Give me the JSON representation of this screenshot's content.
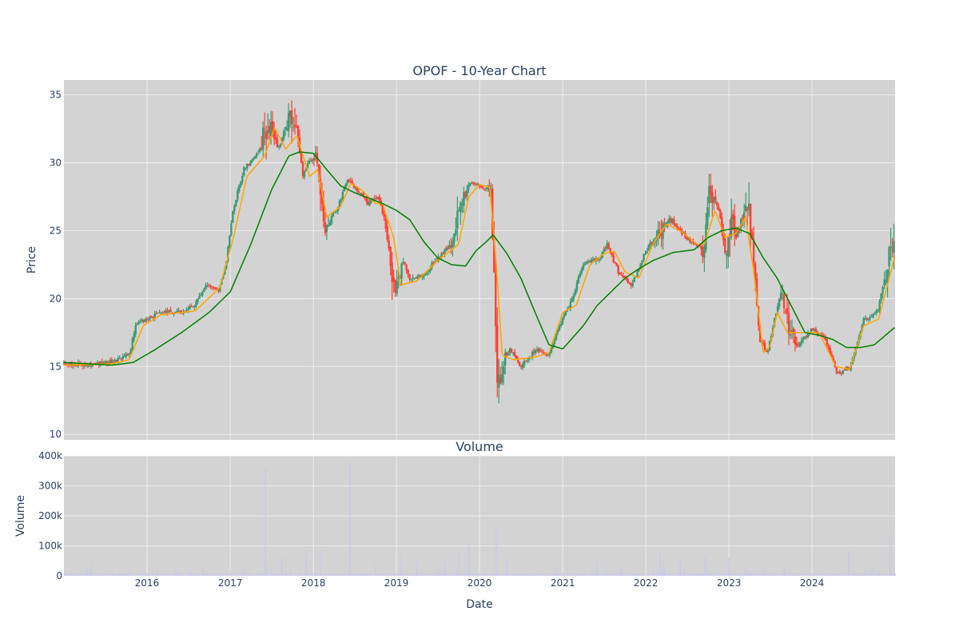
{
  "chart_data": [
    {
      "type": "candlestick",
      "title": "OPOF - 10-Year Chart",
      "ylabel": "Price",
      "ylim": [
        9.6,
        36.1
      ],
      "yticks": [
        10,
        15,
        20,
        25,
        30,
        35
      ],
      "xlim": [
        "2015-01-01",
        "2024-12-31"
      ],
      "grid": true,
      "colors": {
        "up": "#3d9970",
        "down": "#ff4136",
        "ma_short": "#ffa500",
        "ma_long": "#008000",
        "background": "#d3d3d3"
      },
      "price_keypoints": [
        [
          "2015-01-01",
          15.2
        ],
        [
          "2015-04-01",
          15.1
        ],
        [
          "2015-07-01",
          15.3
        ],
        [
          "2015-09-01",
          15.5
        ],
        [
          "2015-10-15",
          15.9
        ],
        [
          "2015-11-15",
          18.1
        ],
        [
          "2016-01-15",
          18.6
        ],
        [
          "2016-03-01",
          19.0
        ],
        [
          "2016-06-01",
          19.1
        ],
        [
          "2016-08-01",
          19.6
        ],
        [
          "2016-09-15",
          20.9
        ],
        [
          "2016-11-15",
          20.7
        ],
        [
          "2016-12-15",
          22.8
        ],
        [
          "2017-01-15",
          26.7
        ],
        [
          "2017-03-01",
          29.5
        ],
        [
          "2017-05-01",
          30.6
        ],
        [
          "2017-06-15",
          33.0
        ],
        [
          "2017-08-01",
          31.0
        ],
        [
          "2017-09-15",
          33.5
        ],
        [
          "2017-10-20",
          32.5
        ],
        [
          "2017-11-15",
          29.0
        ],
        [
          "2017-12-15",
          30.2
        ],
        [
          "2018-01-15",
          30.5
        ],
        [
          "2018-02-20",
          25.5
        ],
        [
          "2018-04-15",
          26.5
        ],
        [
          "2018-06-01",
          28.8
        ],
        [
          "2018-07-15",
          28.0
        ],
        [
          "2018-09-01",
          27.0
        ],
        [
          "2018-10-15",
          27.5
        ],
        [
          "2018-11-15",
          25.5
        ],
        [
          "2018-12-20",
          20.5
        ],
        [
          "2019-02-01",
          22.8
        ],
        [
          "2019-03-01",
          21.5
        ],
        [
          "2019-05-01",
          21.7
        ],
        [
          "2019-07-01",
          23.0
        ],
        [
          "2019-09-01",
          24.0
        ],
        [
          "2019-10-15",
          27.0
        ],
        [
          "2019-11-15",
          28.5
        ],
        [
          "2020-01-15",
          28.2
        ],
        [
          "2020-02-20",
          28.0
        ],
        [
          "2020-03-05",
          22.0
        ],
        [
          "2020-03-20",
          12.5
        ],
        [
          "2020-04-15",
          15.5
        ],
        [
          "2020-05-15",
          16.3
        ],
        [
          "2020-07-01",
          15.0
        ],
        [
          "2020-09-01",
          16.2
        ],
        [
          "2020-11-01",
          15.8
        ],
        [
          "2020-12-15",
          18.0
        ],
        [
          "2021-02-01",
          19.5
        ],
        [
          "2021-04-01",
          22.5
        ],
        [
          "2021-06-15",
          23.0
        ],
        [
          "2021-07-15",
          24.0
        ],
        [
          "2021-09-01",
          22.0
        ],
        [
          "2021-11-01",
          21.0
        ],
        [
          "2022-01-01",
          23.5
        ],
        [
          "2022-03-01",
          25.0
        ],
        [
          "2022-04-15",
          26.0
        ],
        [
          "2022-06-01",
          25.0
        ],
        [
          "2022-08-01",
          24.0
        ],
        [
          "2022-09-15",
          23.6
        ],
        [
          "2022-10-01",
          27.5
        ],
        [
          "2022-11-15",
          26.8
        ],
        [
          "2022-12-20",
          23.0
        ],
        [
          "2023-01-10",
          25.5
        ],
        [
          "2023-02-01",
          24.5
        ],
        [
          "2023-03-20",
          27.5
        ],
        [
          "2023-04-20",
          23.0
        ],
        [
          "2023-05-15",
          17.0
        ],
        [
          "2023-06-20",
          16.0
        ],
        [
          "2023-07-20",
          18.5
        ],
        [
          "2023-08-20",
          20.5
        ],
        [
          "2023-09-20",
          18.0
        ],
        [
          "2023-11-01",
          16.5
        ],
        [
          "2024-01-01",
          17.8
        ],
        [
          "2024-03-01",
          17.0
        ],
        [
          "2024-04-20",
          14.5
        ],
        [
          "2024-06-20",
          15.0
        ],
        [
          "2024-08-15",
          18.5
        ],
        [
          "2024-10-15",
          19.0
        ],
        [
          "2024-12-31",
          25.0
        ]
      ],
      "ma_short_keypoints": [
        [
          "2015-01-01",
          15.1
        ],
        [
          "2015-08-01",
          15.2
        ],
        [
          "2015-10-15",
          15.5
        ],
        [
          "2015-12-15",
          18.0
        ],
        [
          "2016-03-01",
          18.8
        ],
        [
          "2016-08-01",
          19.1
        ],
        [
          "2016-11-15",
          20.8
        ],
        [
          "2017-01-15",
          24.5
        ],
        [
          "2017-03-15",
          29.0
        ],
        [
          "2017-06-01",
          30.5
        ],
        [
          "2017-07-15",
          32.6
        ],
        [
          "2017-09-01",
          31.0
        ],
        [
          "2017-10-20",
          32.0
        ],
        [
          "2017-12-15",
          29.0
        ],
        [
          "2018-01-20",
          29.5
        ],
        [
          "2018-03-01",
          26.0
        ],
        [
          "2018-05-01",
          26.8
        ],
        [
          "2018-06-15",
          28.5
        ],
        [
          "2018-08-01",
          28.0
        ],
        [
          "2018-10-01",
          27.0
        ],
        [
          "2018-11-01",
          27.0
        ],
        [
          "2018-12-20",
          24.5
        ],
        [
          "2019-01-20",
          21.0
        ],
        [
          "2019-04-01",
          21.3
        ],
        [
          "2019-07-01",
          22.8
        ],
        [
          "2019-10-01",
          24.0
        ],
        [
          "2019-11-15",
          27.5
        ],
        [
          "2020-01-01",
          28.4
        ],
        [
          "2020-02-15",
          28.2
        ],
        [
          "2020-03-15",
          22.5
        ],
        [
          "2020-04-10",
          15.8
        ],
        [
          "2020-06-01",
          15.5
        ],
        [
          "2020-09-01",
          15.7
        ],
        [
          "2020-11-01",
          16.0
        ],
        [
          "2021-01-01",
          19.0
        ],
        [
          "2021-03-01",
          19.5
        ],
        [
          "2021-05-01",
          22.5
        ],
        [
          "2021-07-01",
          23.3
        ],
        [
          "2021-08-15",
          23.5
        ],
        [
          "2021-10-01",
          22.0
        ],
        [
          "2021-12-01",
          21.5
        ],
        [
          "2022-02-01",
          24.0
        ],
        [
          "2022-04-01",
          25.5
        ],
        [
          "2022-06-01",
          25.0
        ],
        [
          "2022-08-15",
          24.0
        ],
        [
          "2022-09-15",
          24.0
        ],
        [
          "2022-11-01",
          26.5
        ],
        [
          "2022-12-15",
          24.5
        ],
        [
          "2023-02-01",
          24.8
        ],
        [
          "2023-03-15",
          26.0
        ],
        [
          "2023-04-20",
          22.0
        ],
        [
          "2023-06-01",
          16.0
        ],
        [
          "2023-07-01",
          16.5
        ],
        [
          "2023-08-01",
          19.0
        ],
        [
          "2023-09-15",
          17.5
        ],
        [
          "2023-12-01",
          17.5
        ],
        [
          "2024-02-01",
          17.5
        ],
        [
          "2024-04-15",
          15.0
        ],
        [
          "2024-06-15",
          14.8
        ],
        [
          "2024-08-15",
          18.0
        ],
        [
          "2024-10-20",
          18.5
        ],
        [
          "2024-12-31",
          23.2
        ]
      ],
      "ma_long_keypoints": [
        [
          "2015-01-01",
          15.3
        ],
        [
          "2015-08-01",
          15.1
        ],
        [
          "2015-11-01",
          15.3
        ],
        [
          "2016-02-01",
          16.2
        ],
        [
          "2016-06-01",
          17.5
        ],
        [
          "2016-10-01",
          19.0
        ],
        [
          "2017-01-01",
          20.5
        ],
        [
          "2017-04-01",
          24.0
        ],
        [
          "2017-07-01",
          28.0
        ],
        [
          "2017-09-15",
          30.5
        ],
        [
          "2017-11-01",
          30.8
        ],
        [
          "2018-01-01",
          30.7
        ],
        [
          "2018-03-01",
          29.5
        ],
        [
          "2018-05-01",
          28.3
        ],
        [
          "2018-07-01",
          27.8
        ],
        [
          "2018-09-01",
          27.4
        ],
        [
          "2018-11-01",
          27.0
        ],
        [
          "2019-01-01",
          26.5
        ],
        [
          "2019-03-01",
          25.8
        ],
        [
          "2019-05-01",
          24.2
        ],
        [
          "2019-07-01",
          23.0
        ],
        [
          "2019-09-01",
          22.5
        ],
        [
          "2019-11-01",
          22.4
        ],
        [
          "2019-12-15",
          23.5
        ],
        [
          "2020-02-01",
          24.2
        ],
        [
          "2020-03-01",
          24.7
        ],
        [
          "2020-05-01",
          23.3
        ],
        [
          "2020-07-01",
          21.5
        ],
        [
          "2020-09-01",
          19.0
        ],
        [
          "2020-11-01",
          16.6
        ],
        [
          "2021-01-01",
          16.3
        ],
        [
          "2021-04-01",
          18.0
        ],
        [
          "2021-06-01",
          19.5
        ],
        [
          "2021-08-01",
          20.5
        ],
        [
          "2021-10-01",
          21.5
        ],
        [
          "2021-12-01",
          22.2
        ],
        [
          "2022-02-01",
          22.8
        ],
        [
          "2022-05-01",
          23.4
        ],
        [
          "2022-08-01",
          23.6
        ],
        [
          "2022-10-01",
          24.5
        ],
        [
          "2022-12-01",
          25.0
        ],
        [
          "2023-02-01",
          25.2
        ],
        [
          "2023-04-01",
          24.8
        ],
        [
          "2023-06-01",
          23.0
        ],
        [
          "2023-08-01",
          21.5
        ],
        [
          "2023-10-01",
          19.5
        ],
        [
          "2023-12-01",
          17.5
        ],
        [
          "2024-02-01",
          17.3
        ],
        [
          "2024-04-01",
          17.0
        ],
        [
          "2024-06-01",
          16.4
        ],
        [
          "2024-08-01",
          16.4
        ],
        [
          "2024-10-01",
          16.6
        ],
        [
          "2024-12-31",
          17.9
        ]
      ],
      "volatility_events": [
        [
          "2017-06-15",
          2.5
        ],
        [
          "2017-10-01",
          2.0
        ],
        [
          "2018-02-10",
          1.8
        ],
        [
          "2018-12-20",
          2.0
        ],
        [
          "2019-10-01",
          1.5
        ],
        [
          "2020-03-20",
          3.0
        ],
        [
          "2022-03-15",
          1.5
        ],
        [
          "2022-10-01",
          2.0
        ],
        [
          "2023-01-10",
          2.0
        ],
        [
          "2023-04-01",
          2.0
        ],
        [
          "2023-09-20",
          2.0
        ],
        [
          "2024-12-15",
          2.0
        ]
      ]
    },
    {
      "type": "bar",
      "title": "Volume",
      "ylabel": "Volume",
      "xlabel": "Date",
      "ylim": [
        0,
        400000
      ],
      "yticks": [
        0,
        100000,
        200000,
        300000,
        400000
      ],
      "ytick_labels": [
        "0",
        "100k",
        "200k",
        "300k",
        "400k"
      ],
      "xticks": [
        "2016-01-01",
        "2017-01-01",
        "2018-01-01",
        "2019-01-01",
        "2020-01-01",
        "2021-01-01",
        "2022-01-01",
        "2023-01-01",
        "2024-01-01"
      ],
      "xtick_labels": [
        "2016",
        "2017",
        "2018",
        "2019",
        "2020",
        "2021",
        "2022",
        "2023",
        "2024"
      ],
      "grid": true,
      "colors": {
        "bar": "#c9c9e6",
        "background": "#d3d3d3"
      },
      "volume_spikes": [
        [
          "2015-05-01",
          40000
        ],
        [
          "2015-08-01",
          18000
        ],
        [
          "2016-05-15",
          15000
        ],
        [
          "2016-09-01",
          22000
        ],
        [
          "2017-03-01",
          25000
        ],
        [
          "2017-06-05",
          360000
        ],
        [
          "2017-08-15",
          60000
        ],
        [
          "2017-12-01",
          70000
        ],
        [
          "2018-02-01",
          85000
        ],
        [
          "2018-06-10",
          380000
        ],
        [
          "2018-10-01",
          35000
        ],
        [
          "2019-01-20",
          65000
        ],
        [
          "2019-04-01",
          50000
        ],
        [
          "2019-08-01",
          60000
        ],
        [
          "2019-10-01",
          80000
        ],
        [
          "2019-11-15",
          110000
        ],
        [
          "2020-03-15",
          160000
        ],
        [
          "2020-05-01",
          55000
        ],
        [
          "2020-12-01",
          30000
        ],
        [
          "2021-06-01",
          50000
        ],
        [
          "2021-09-15",
          30000
        ],
        [
          "2022-02-01",
          25000
        ],
        [
          "2022-03-05",
          80000
        ],
        [
          "2022-03-20",
          45000
        ],
        [
          "2022-06-01",
          55000
        ],
        [
          "2022-09-20",
          70000
        ],
        [
          "2023-01-01",
          60000
        ],
        [
          "2023-03-15",
          25000
        ],
        [
          "2023-09-01",
          25000
        ],
        [
          "2024-06-10",
          85000
        ],
        [
          "2024-12-10",
          135000
        ]
      ]
    }
  ]
}
